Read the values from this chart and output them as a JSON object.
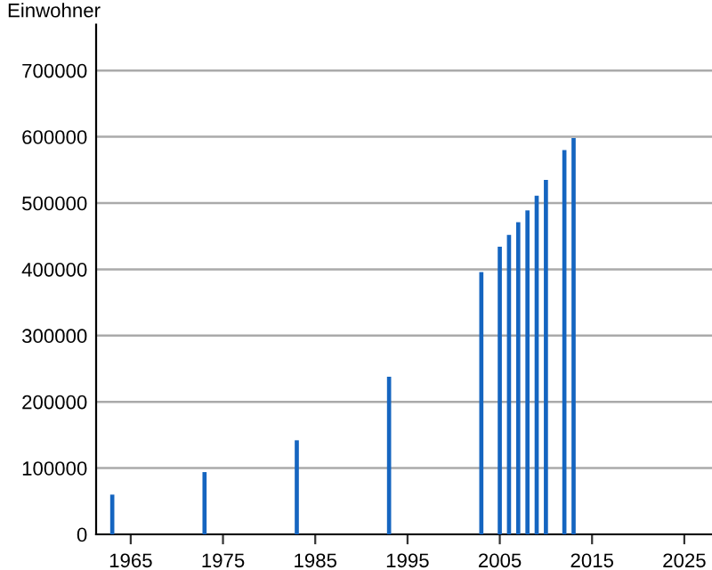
{
  "chart_data": {
    "type": "bar",
    "ylabel": "Einwohner",
    "x": [
      1963,
      1973,
      1983,
      1993,
      2003,
      2005,
      2006,
      2007,
      2008,
      2009,
      2010,
      2012,
      2013
    ],
    "values": [
      60000,
      94000,
      142000,
      238000,
      396000,
      434000,
      452000,
      471000,
      489000,
      511000,
      535000,
      580000,
      598000
    ],
    "color": "#1565c0",
    "xlim": [
      1961.25,
      2028
    ],
    "xticks": [
      1965,
      1975,
      1985,
      1995,
      2005,
      2015,
      2025
    ],
    "ylim": [
      0,
      800000
    ],
    "yticks": [
      0,
      100000,
      200000,
      300000,
      400000,
      500000,
      600000,
      700000
    ],
    "grid": "y",
    "legend": false
  }
}
